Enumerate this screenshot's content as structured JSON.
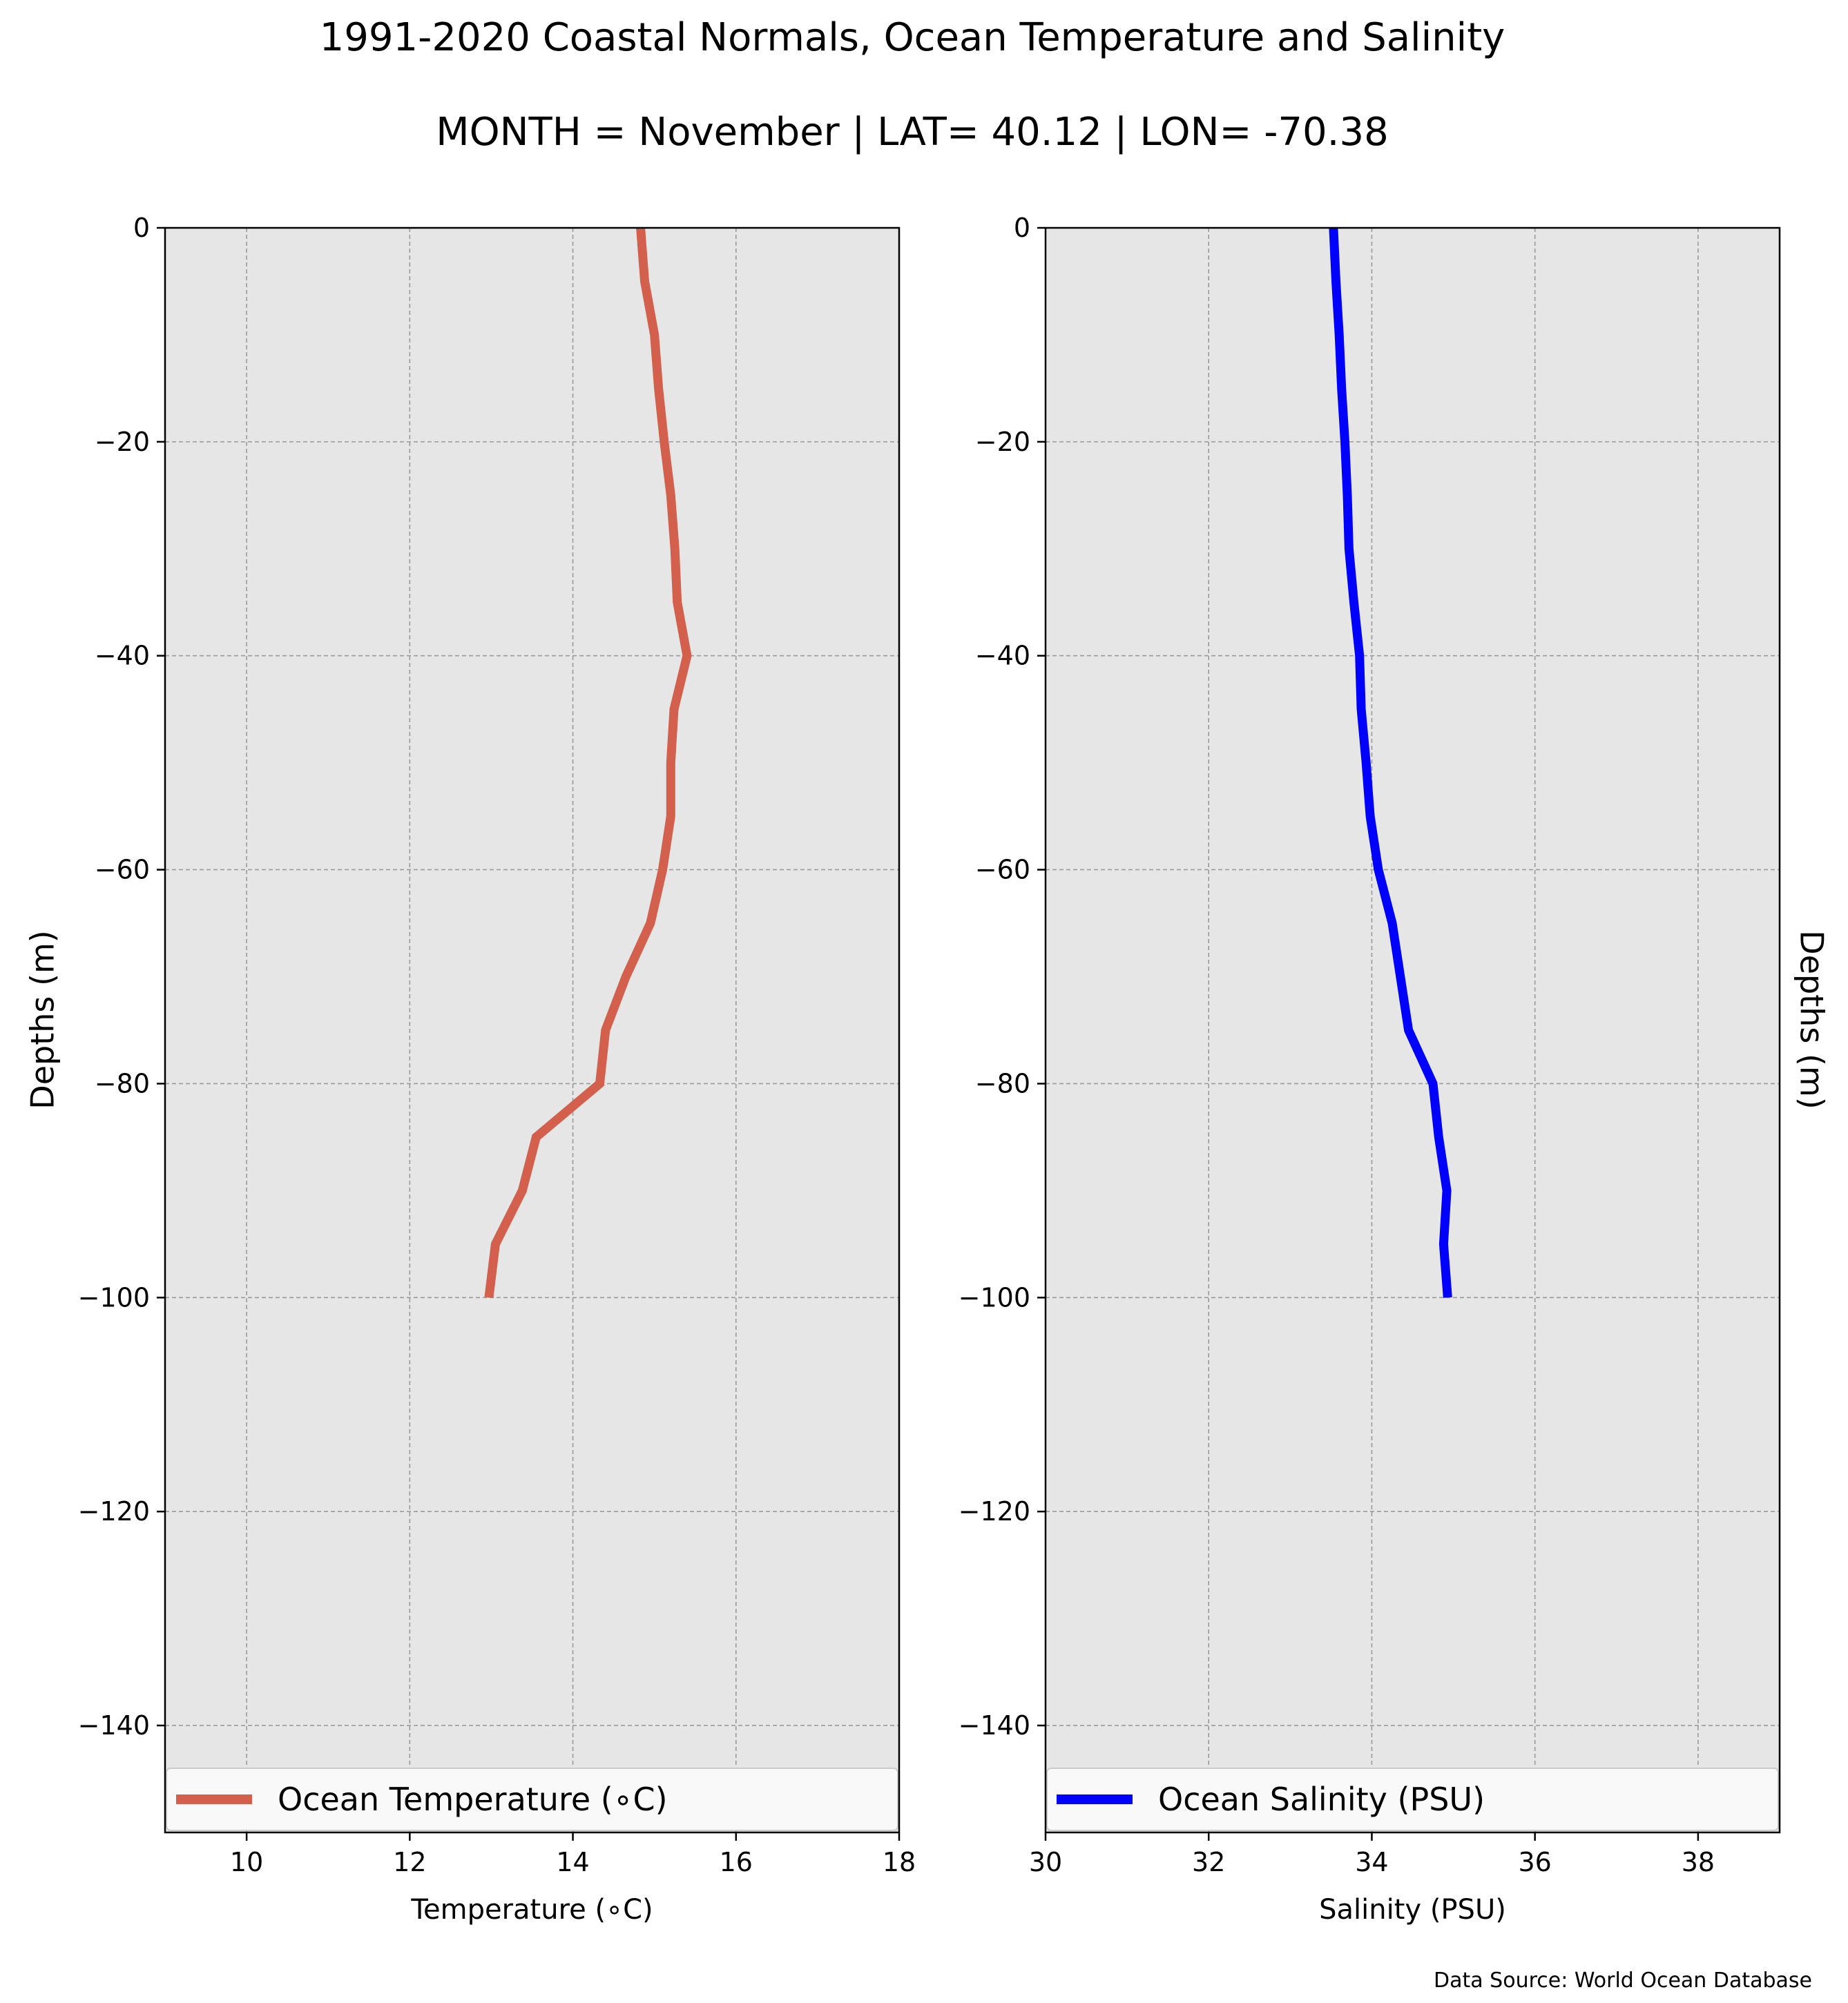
{
  "title": "1991-2020 Coastal Normals, Ocean Temperature and Salinity",
  "subtitle": "MONTH = November | LAT= 40.12 | LON= -70.38",
  "source": "Data Source: World Ocean Database",
  "chart_data": [
    {
      "type": "line",
      "xlabel": "Temperature ($^\\circ$C)",
      "xlabel_display": "Temperature (∘C)",
      "ylabel": "Depths (m)",
      "xlim": [
        9,
        18
      ],
      "ylim": [
        -150,
        0
      ],
      "xticks": [
        10,
        12,
        14,
        16,
        18
      ],
      "xtick_labels": [
        "10",
        "12",
        "14",
        "16",
        "18"
      ],
      "yticks": [
        0,
        -20,
        -40,
        -60,
        -80,
        -100,
        -120,
        -140
      ],
      "ytick_labels": [
        "0",
        "−20",
        "−40",
        "−60",
        "−80",
        "−100",
        "−120",
        "−140"
      ],
      "grid": true,
      "legend_position": "bottom",
      "series": [
        {
          "name": "Ocean Temperature (∘C)",
          "color": "#d2604c",
          "x": [
            14.83,
            14.88,
            15.0,
            15.05,
            15.12,
            15.2,
            15.25,
            15.28,
            15.4,
            15.24,
            15.2,
            15.2,
            15.1,
            14.95,
            14.65,
            14.4,
            14.33,
            13.55,
            13.38,
            13.05,
            12.97
          ],
          "y": [
            0,
            -5,
            -10,
            -15,
            -20,
            -25,
            -30,
            -35,
            -40,
            -45,
            -50,
            -55,
            -60,
            -65,
            -70,
            -75,
            -80,
            -85,
            -90,
            -95,
            -100
          ]
        }
      ]
    },
    {
      "type": "line",
      "xlabel": "Salinity (PSU)",
      "ylabel": "Depths (m)",
      "xlim": [
        30,
        39
      ],
      "ylim": [
        -150,
        0
      ],
      "xticks": [
        30,
        32,
        34,
        36,
        38
      ],
      "xtick_labels": [
        "30",
        "32",
        "34",
        "36",
        "38"
      ],
      "yticks": [
        0,
        -20,
        -40,
        -60,
        -80,
        -100,
        -120,
        -140
      ],
      "ytick_labels": [
        "0",
        "−20",
        "−40",
        "−60",
        "−80",
        "−100",
        "−120",
        "−140"
      ],
      "grid": true,
      "legend_position": "bottom",
      "series": [
        {
          "name": "Ocean Salinity (PSU)",
          "color": "#0000ff",
          "x": [
            33.53,
            33.56,
            33.6,
            33.63,
            33.67,
            33.7,
            33.72,
            33.78,
            33.85,
            33.87,
            33.93,
            33.98,
            34.08,
            34.25,
            34.35,
            34.45,
            34.75,
            34.82,
            34.92,
            34.88,
            34.93
          ],
          "y": [
            0,
            -5,
            -10,
            -15,
            -20,
            -25,
            -30,
            -35,
            -40,
            -45,
            -50,
            -55,
            -60,
            -65,
            -70,
            -75,
            -80,
            -85,
            -90,
            -95,
            -100
          ]
        }
      ]
    }
  ]
}
